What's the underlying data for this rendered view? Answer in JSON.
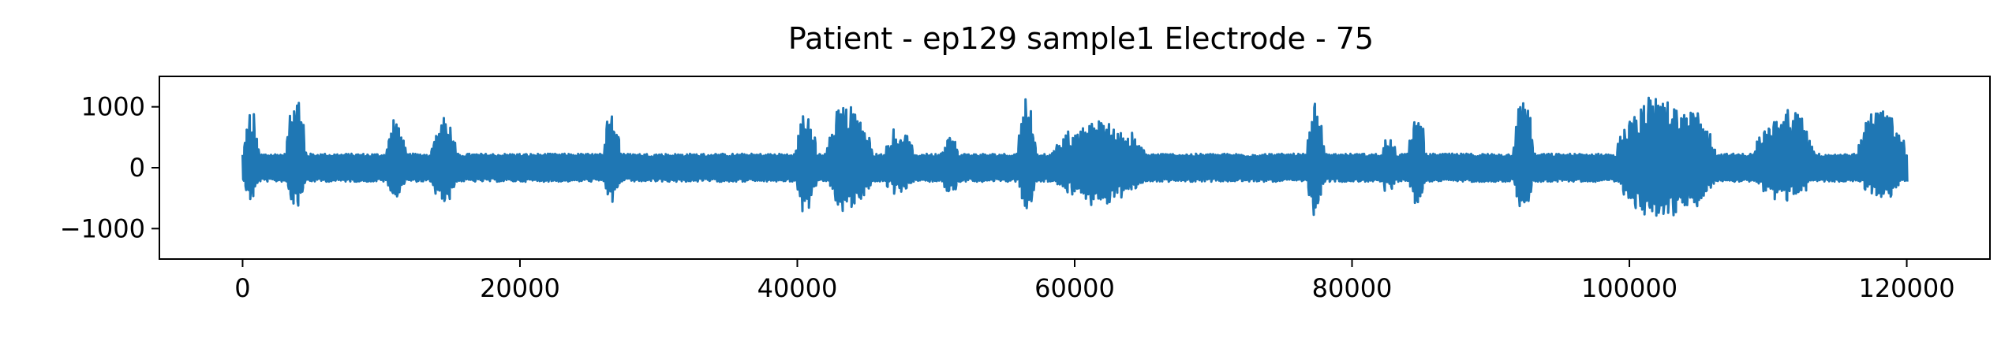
{
  "chart_data": {
    "type": "line",
    "title": "Patient - ep129 sample1 Electrode - 75",
    "xlabel": "",
    "ylabel": "",
    "xlim": [
      -6000,
      126000
    ],
    "ylim": [
      -1500,
      1500
    ],
    "xticks": [
      0,
      20000,
      40000,
      60000,
      80000,
      100000,
      120000
    ],
    "xtick_labels": [
      "0",
      "20000",
      "40000",
      "60000",
      "80000",
      "100000",
      "120000"
    ],
    "yticks": [
      1000,
      0,
      -1000
    ],
    "ytick_labels": [
      "1000",
      "0",
      "−1000"
    ],
    "grid": false,
    "legend": "none",
    "series_color": "#1f77b4",
    "n_samples": 120000,
    "baseline_envelope": 230,
    "bursts": [
      {
        "start": 0,
        "end": 1200,
        "max": 1000,
        "min": -600
      },
      {
        "start": 3000,
        "end": 4600,
        "max": 1250,
        "min": -680
      },
      {
        "start": 10300,
        "end": 11800,
        "max": 960,
        "min": -600
      },
      {
        "start": 13300,
        "end": 15500,
        "max": 900,
        "min": -680
      },
      {
        "start": 26000,
        "end": 27300,
        "max": 1130,
        "min": -640
      },
      {
        "start": 39800,
        "end": 41400,
        "max": 1150,
        "min": -850
      },
      {
        "start": 42000,
        "end": 45500,
        "max": 1230,
        "min": -820
      },
      {
        "start": 46000,
        "end": 48500,
        "max": 700,
        "min": -500
      },
      {
        "start": 50300,
        "end": 51700,
        "max": 600,
        "min": -500
      },
      {
        "start": 55800,
        "end": 57300,
        "max": 1200,
        "min": -780
      },
      {
        "start": 58000,
        "end": 65500,
        "max": 850,
        "min": -650
      },
      {
        "start": 76700,
        "end": 78000,
        "max": 1120,
        "min": -860
      },
      {
        "start": 82000,
        "end": 83200,
        "max": 600,
        "min": -500
      },
      {
        "start": 84000,
        "end": 85300,
        "max": 1000,
        "min": -700
      },
      {
        "start": 91500,
        "end": 93200,
        "max": 1200,
        "min": -740
      },
      {
        "start": 98800,
        "end": 106500,
        "max": 1320,
        "min": -900
      },
      {
        "start": 108800,
        "end": 113500,
        "max": 1100,
        "min": -600
      },
      {
        "start": 116300,
        "end": 120000,
        "max": 1150,
        "min": -580
      }
    ]
  }
}
